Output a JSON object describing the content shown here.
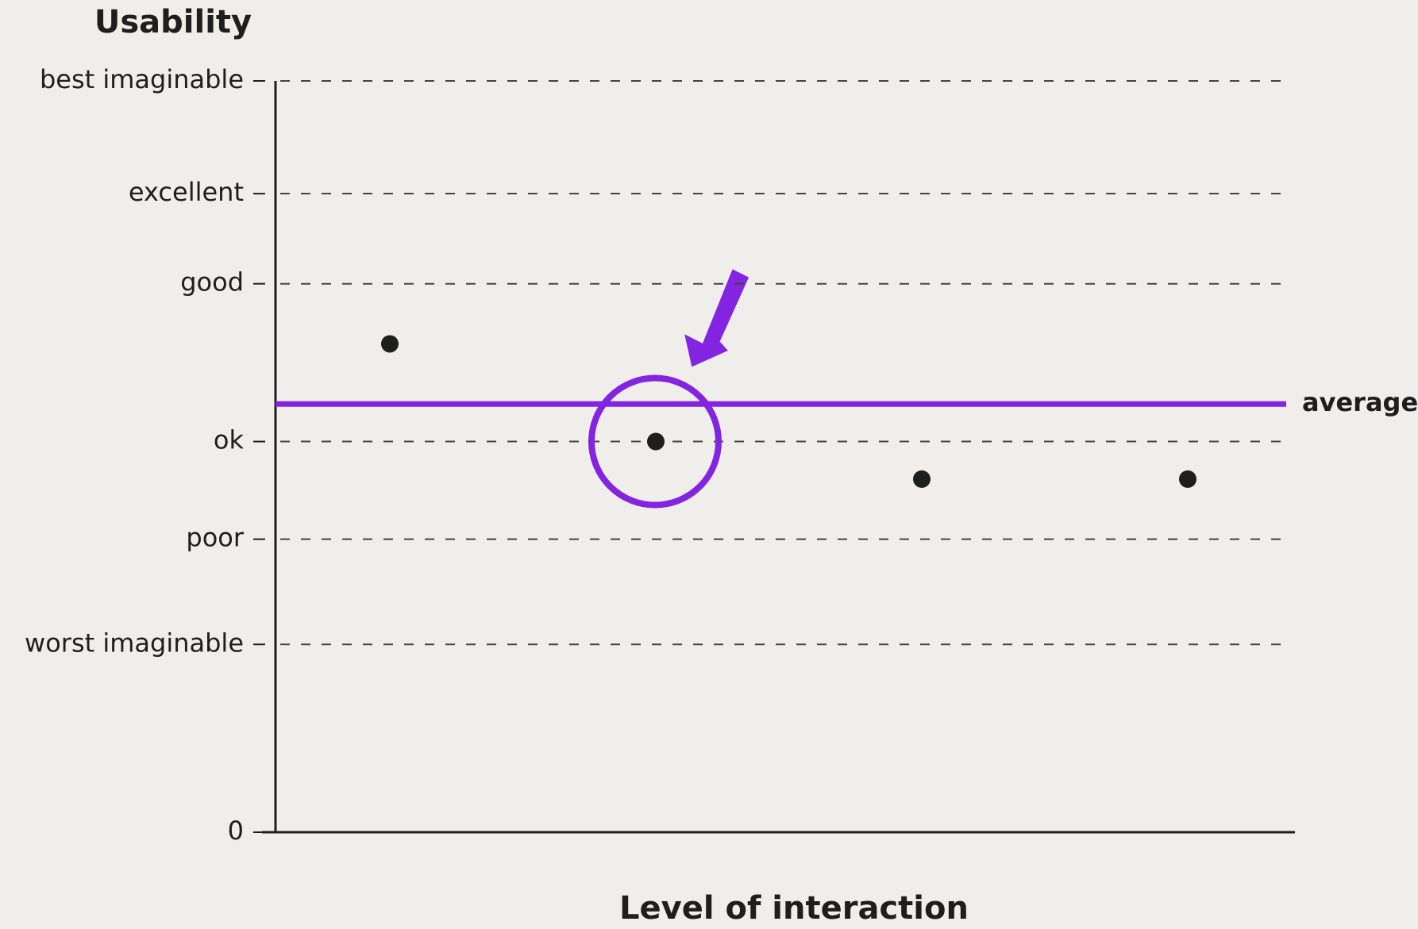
{
  "chart_data": {
    "type": "scatter",
    "title": "Usability",
    "x_label": "Level of interaction",
    "categories": [
      null,
      null,
      null,
      null
    ],
    "values": [
      65,
      52,
      47,
      47
    ],
    "color": "#1e1e1e",
    "ylim": [
      0,
      100
    ],
    "yticks": [
      0,
      {
        "value": 25,
        "label": "worst imaginable"
      },
      {
        "value": 39,
        "label": "poor"
      },
      {
        "value": 52,
        "label": "ok"
      },
      {
        "value": 73,
        "label": "good"
      },
      {
        "value": 85,
        "label": "excellent"
      },
      {
        "value": 100,
        "label": "best imaginable"
      }
    ],
    "grid": true,
    "average": {
      "label": "average",
      "value": 57,
      "color": "#8224e0"
    },
    "highlight_index": 1
  }
}
